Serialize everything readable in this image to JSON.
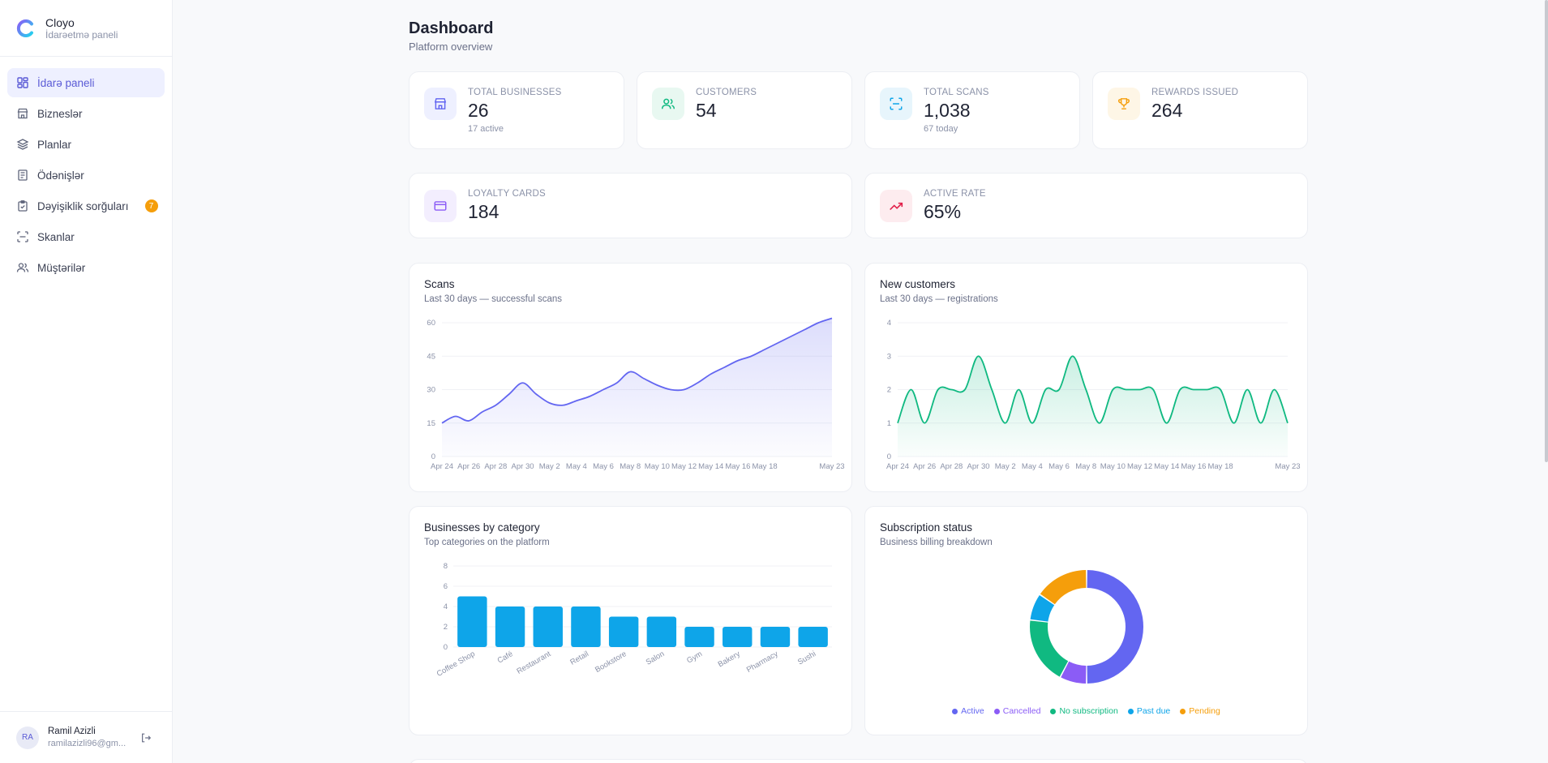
{
  "brand": {
    "name": "Cloyo",
    "subtitle": "İdarəetmə paneli"
  },
  "nav": [
    {
      "label": "İdarə paneli",
      "icon": "dashboard-icon",
      "active": true
    },
    {
      "label": "Bizneslər",
      "icon": "store-icon"
    },
    {
      "label": "Planlar",
      "icon": "layers-icon"
    },
    {
      "label": "Ödənişlər",
      "icon": "receipt-icon"
    },
    {
      "label": "Dəyişiklik sorğuları",
      "icon": "clipboard-icon",
      "badge": "7"
    },
    {
      "label": "Skanlar",
      "icon": "scan-icon"
    },
    {
      "label": "Müştərilər",
      "icon": "users-icon"
    }
  ],
  "user": {
    "initials": "RA",
    "name": "Ramil Azizli",
    "email": "ramilazizli96@gm..."
  },
  "page": {
    "title": "Dashboard",
    "subtitle": "Platform overview"
  },
  "stats": {
    "businesses": {
      "label": "TOTAL BUSINESSES",
      "value": "26",
      "sub": "17 active"
    },
    "customers": {
      "label": "CUSTOMERS",
      "value": "54"
    },
    "scans": {
      "label": "TOTAL SCANS",
      "value": "1,038",
      "sub": "67 today"
    },
    "rewards": {
      "label": "REWARDS ISSUED",
      "value": "264"
    },
    "loyalty": {
      "label": "LOYALTY CARDS",
      "value": "184"
    },
    "active_rate": {
      "label": "ACTIVE RATE",
      "value": "65%"
    }
  },
  "colors": {
    "accent": "#6366f1",
    "green": "#10b981",
    "blue": "#0ea5e9",
    "purple": "#8b5cf6",
    "orange": "#f59e0b",
    "pink": "#e11d48"
  },
  "charts": {
    "scans": {
      "title": "Scans",
      "subtitle": "Last 30 days — successful scans"
    },
    "customers": {
      "title": "New customers",
      "subtitle": "Last 30 days — registrations"
    },
    "categories": {
      "title": "Businesses by category",
      "subtitle": "Top categories on the platform"
    },
    "subscription": {
      "title": "Subscription status",
      "subtitle": "Business billing breakdown"
    }
  },
  "chart_data": [
    {
      "type": "area",
      "title": "Scans",
      "x": [
        "Apr 24",
        "Apr 25",
        "Apr 26",
        "Apr 27",
        "Apr 28",
        "Apr 29",
        "Apr 30",
        "May 1",
        "May 2",
        "May 3",
        "May 4",
        "May 5",
        "May 6",
        "May 7",
        "May 8",
        "May 9",
        "May 10",
        "May 11",
        "May 12",
        "May 13",
        "May 14",
        "May 15",
        "May 16",
        "May 17",
        "May 18",
        "May 19",
        "May 20",
        "May 21",
        "May 22",
        "May 23"
      ],
      "x_ticks": [
        "Apr 24",
        "Apr 26",
        "Apr 28",
        "Apr 30",
        "May 2",
        "May 4",
        "May 6",
        "May 8",
        "May 10",
        "May 12",
        "May 14",
        "May 16",
        "May 18",
        "May 23"
      ],
      "values": [
        15,
        18,
        16,
        20,
        23,
        28,
        33,
        28,
        24,
        23,
        25,
        27,
        30,
        33,
        38,
        35,
        32,
        30,
        30,
        33,
        37,
        40,
        43,
        45,
        48,
        51,
        54,
        57,
        60,
        62
      ],
      "y_ticks": [
        0,
        15,
        30,
        45,
        60
      ],
      "ylim": [
        0,
        60
      ]
    },
    {
      "type": "area",
      "title": "New customers",
      "x": [
        "Apr 24",
        "Apr 25",
        "Apr 26",
        "Apr 27",
        "Apr 28",
        "Apr 29",
        "Apr 30",
        "May 1",
        "May 2",
        "May 3",
        "May 4",
        "May 5",
        "May 6",
        "May 7",
        "May 8",
        "May 9",
        "May 10",
        "May 11",
        "May 12",
        "May 13",
        "May 14",
        "May 15",
        "May 16",
        "May 17",
        "May 18",
        "May 19",
        "May 20",
        "May 21",
        "May 22",
        "May 23"
      ],
      "x_ticks": [
        "Apr 24",
        "Apr 26",
        "Apr 28",
        "Apr 30",
        "May 2",
        "May 4",
        "May 6",
        "May 8",
        "May 10",
        "May 12",
        "May 14",
        "May 16",
        "May 18",
        "May 23"
      ],
      "values": [
        1,
        2,
        1,
        2,
        2,
        2,
        3,
        2,
        1,
        2,
        1,
        2,
        2,
        3,
        2,
        1,
        2,
        2,
        2,
        2,
        1,
        2,
        2,
        2,
        2,
        1,
        2,
        1,
        2,
        1
      ],
      "y_ticks": [
        0,
        1,
        2,
        3,
        4
      ],
      "ylim": [
        0,
        4
      ]
    },
    {
      "type": "bar",
      "title": "Businesses by category",
      "categories": [
        "Coffee Shop",
        "Café",
        "Restaurant",
        "Retail",
        "Bookstore",
        "Salon",
        "Gym",
        "Bakery",
        "Pharmacy",
        "Sushi"
      ],
      "values": [
        5,
        4,
        4,
        4,
        3,
        3,
        2,
        2,
        2,
        2
      ],
      "y_ticks": [
        0,
        2,
        4,
        6,
        8
      ],
      "ylim": [
        0,
        8
      ]
    },
    {
      "type": "pie",
      "title": "Subscription status",
      "labels": [
        "Active",
        "Cancelled",
        "No subscription",
        "Past due",
        "Pending"
      ],
      "values": [
        13,
        2,
        5,
        2,
        4
      ],
      "colors": [
        "#6366f1",
        "#8b5cf6",
        "#10b981",
        "#0ea5e9",
        "#f59e0b"
      ]
    }
  ]
}
